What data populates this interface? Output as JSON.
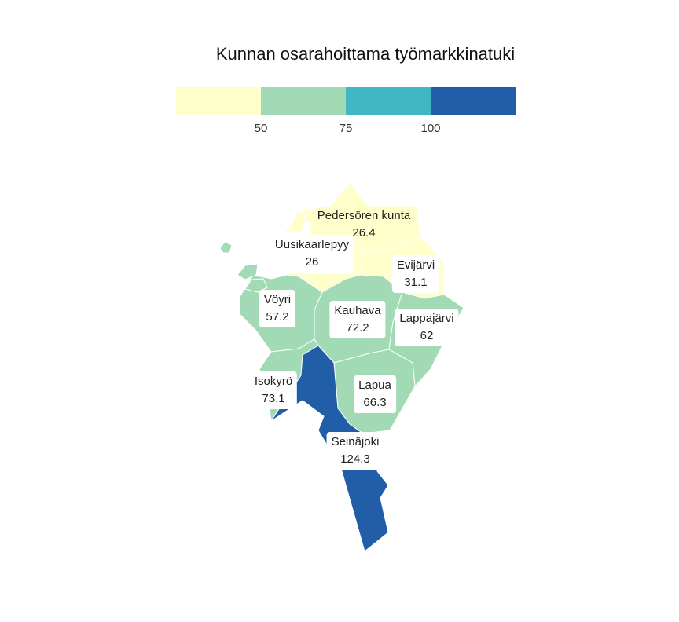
{
  "title": "Kunnan osarahoittama työmarkkinatuki",
  "colors": {
    "class_1": "#ffffcc",
    "class_2": "#a1dab4",
    "class_3": "#41b6c4",
    "class_4": "#225ea8"
  },
  "legend": {
    "ticks": [
      "50",
      "75",
      "100"
    ]
  },
  "municipalities": [
    {
      "name": "Pedersören kunta",
      "value": "26.4"
    },
    {
      "name": "Uusikaarlepyy",
      "value": "26"
    },
    {
      "name": "Evijärvi",
      "value": "31.1"
    },
    {
      "name": "Vöyri",
      "value": "57.2"
    },
    {
      "name": "Kauhava",
      "value": "72.2"
    },
    {
      "name": "Lappajärvi",
      "value": "62"
    },
    {
      "name": "Isokyrö",
      "value": "73.1"
    },
    {
      "name": "Lapua",
      "value": "66.3"
    },
    {
      "name": "Seinäjoki",
      "value": "124.3"
    }
  ]
}
